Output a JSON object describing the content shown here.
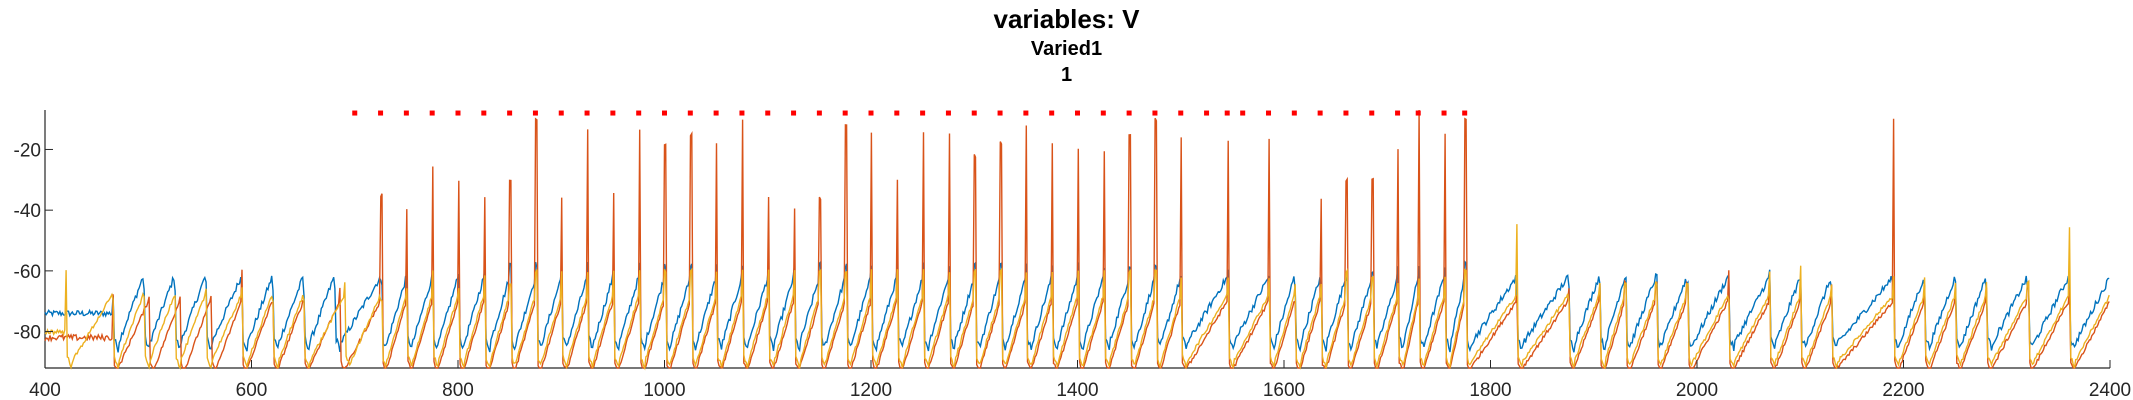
{
  "title": "variables: V",
  "subtitle": "Varied1",
  "subtitle2": "1",
  "chart_data": {
    "type": "line",
    "xlim": [
      400,
      2400
    ],
    "ylim": [
      -92,
      -7
    ],
    "xticks": [
      400,
      600,
      800,
      1000,
      1200,
      1400,
      1600,
      1800,
      2000,
      2200,
      2400
    ],
    "yticks": [
      -20,
      -40,
      -60,
      -80
    ],
    "ytick_labels": [
      "-20",
      "-40",
      "-60",
      "-80"
    ],
    "colors": {
      "blue": "#0072BD",
      "red": "#D95319",
      "yellow": "#EDB120",
      "marker": "#FF0000"
    },
    "spike_marker_y": -8,
    "spike_markers_x": [
      700,
      725,
      750,
      775,
      800,
      825,
      850,
      875,
      900,
      925,
      950,
      975,
      1000,
      1025,
      1050,
      1075,
      1100,
      1125,
      1150,
      1175,
      1200,
      1225,
      1250,
      1275,
      1300,
      1325,
      1350,
      1375,
      1400,
      1425,
      1450,
      1475,
      1500,
      1525,
      1545,
      1560,
      1585,
      1610,
      1635,
      1660,
      1685,
      1710,
      1730,
      1755,
      1775
    ],
    "series": [
      {
        "color": "blue",
        "baseline": -82,
        "spikes_x": [
          465,
          495,
          525,
          555,
          590,
          620,
          650,
          680,
          725,
          750,
          775,
          800,
          825,
          850,
          875,
          900,
          925,
          950,
          975,
          1000,
          1025,
          1050,
          1075,
          1100,
          1125,
          1150,
          1175,
          1200,
          1225,
          1250,
          1275,
          1300,
          1325,
          1350,
          1375,
          1400,
          1425,
          1450,
          1475,
          1500,
          1545,
          1585,
          1610,
          1635,
          1660,
          1685,
          1710,
          1730,
          1755,
          1775,
          1825,
          1875,
          1905,
          1930,
          1960,
          1990,
          2030,
          2070,
          2100,
          2130,
          2190,
          2220,
          2250,
          2280,
          2320,
          2360
        ],
        "spikes_peak": [
          -68,
          -66,
          -66,
          -64,
          -66,
          -66,
          -68,
          -66,
          -64,
          -62,
          -60,
          -60,
          -60,
          -58,
          -58,
          -58,
          -58,
          -58,
          -58,
          -58,
          -58,
          -58,
          -58,
          -58,
          -58,
          -58,
          -58,
          -58,
          -58,
          -58,
          -58,
          -58,
          -58,
          -58,
          -58,
          -58,
          -58,
          -58,
          -58,
          -62,
          -60,
          -62,
          -66,
          -66,
          -62,
          -60,
          -58,
          -58,
          -58,
          -58,
          -66,
          -66,
          -64,
          -62,
          -62,
          -64,
          -62,
          -60,
          -64,
          -66,
          -64,
          -66,
          -64,
          -66,
          -66,
          -64
        ]
      },
      {
        "color": "red",
        "baseline": -90,
        "spikes_x": [
          465,
          500,
          530,
          560,
          590,
          620,
          650,
          685,
          725,
          750,
          775,
          800,
          825,
          850,
          875,
          900,
          925,
          950,
          975,
          1000,
          1025,
          1050,
          1075,
          1100,
          1125,
          1150,
          1175,
          1200,
          1225,
          1250,
          1275,
          1300,
          1325,
          1350,
          1375,
          1400,
          1425,
          1450,
          1475,
          1500,
          1545,
          1585,
          1610,
          1635,
          1660,
          1685,
          1710,
          1730,
          1755,
          1775,
          1825,
          1875,
          1905,
          1930,
          1960,
          1990,
          2030,
          2070,
          2100,
          2130,
          2190,
          2220,
          2250,
          2280,
          2320,
          2360
        ],
        "spikes_peak": [
          -68,
          -68,
          -68,
          -68,
          -60,
          -70,
          -70,
          -66,
          -35,
          -40,
          -26,
          -30,
          -36,
          -30,
          -10,
          -36,
          -14,
          -34,
          -14,
          -18,
          -15,
          -18,
          -10,
          -36,
          -40,
          -36,
          -12,
          -14,
          -30,
          -14,
          -15,
          -22,
          -18,
          -12,
          -18,
          -20,
          -20,
          -15,
          -10,
          -16,
          -17,
          -16,
          -70,
          -36,
          -30,
          -30,
          -20,
          -7,
          -15,
          -10,
          -68,
          -66,
          -64,
          -64,
          -64,
          -64,
          -60,
          -60,
          -64,
          -64,
          -10,
          -64,
          -66,
          -66,
          -64,
          -66
        ]
      },
      {
        "color": "yellow",
        "baseline": -88,
        "spikes_x": [
          420,
          465,
          495,
          525,
          555,
          590,
          620,
          650,
          690,
          725,
          750,
          775,
          800,
          825,
          850,
          875,
          900,
          925,
          950,
          975,
          1000,
          1025,
          1050,
          1075,
          1100,
          1125,
          1150,
          1175,
          1200,
          1225,
          1250,
          1275,
          1300,
          1325,
          1350,
          1375,
          1400,
          1425,
          1450,
          1475,
          1500,
          1545,
          1585,
          1610,
          1635,
          1660,
          1685,
          1710,
          1730,
          1755,
          1775,
          1825,
          1875,
          1905,
          1930,
          1960,
          1990,
          2030,
          2070,
          2100,
          2130,
          2190,
          2220,
          2250,
          2280,
          2320,
          2360
        ],
        "spikes_peak": [
          -60,
          -70,
          -68,
          -68,
          -66,
          -66,
          -70,
          -70,
          -64,
          -70,
          -66,
          -60,
          -66,
          -62,
          -64,
          -60,
          -60,
          -60,
          -60,
          -60,
          -60,
          -60,
          -60,
          -60,
          -60,
          -60,
          -60,
          -60,
          -60,
          -60,
          -60,
          -60,
          -60,
          -60,
          -60,
          -60,
          -60,
          -60,
          -60,
          -60,
          -62,
          -62,
          -62,
          -64,
          -64,
          -60,
          -62,
          -64,
          -62,
          -62,
          -60,
          -44,
          -70,
          -64,
          -64,
          -64,
          -64,
          -70,
          -60,
          -58,
          -64,
          -62,
          -62,
          -64,
          -64,
          -64,
          -46
        ]
      }
    ]
  }
}
